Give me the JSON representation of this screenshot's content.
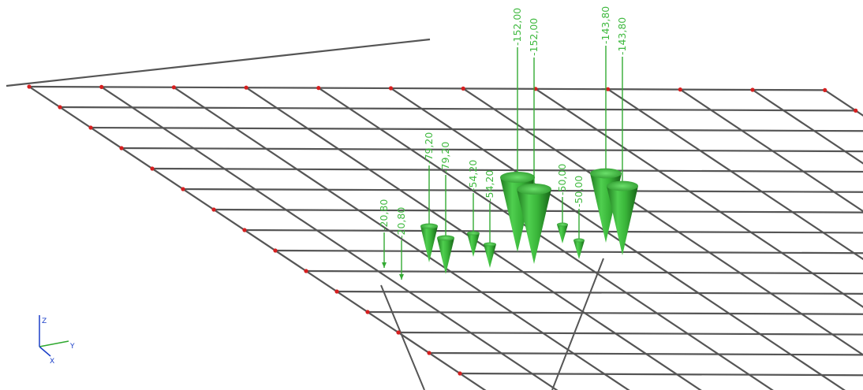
{
  "viewport": {
    "background": "#ffffff",
    "mesh_color": "#555555",
    "node_color": "#d61f1f",
    "load_color": "#33aa33",
    "load_label_color": "#3fb93f"
  },
  "loads": [
    {
      "label": "-20,80"
    },
    {
      "label": "-20,80"
    },
    {
      "label": "-79,20"
    },
    {
      "label": "-79,20"
    },
    {
      "label": "-54,20"
    },
    {
      "label": "-54,20"
    },
    {
      "label": "-152,00"
    },
    {
      "label": "-152,00"
    },
    {
      "label": "-50,00"
    },
    {
      "label": "-50,00"
    },
    {
      "label": "-143,80"
    },
    {
      "label": "-143,80"
    }
  ],
  "axis_triad": {
    "z_label": "Z",
    "y_label": "Y",
    "x_label": "X",
    "z_color": "#1a3ec8",
    "y_color": "#2ea82e",
    "x_color": "#1a3ec8"
  }
}
